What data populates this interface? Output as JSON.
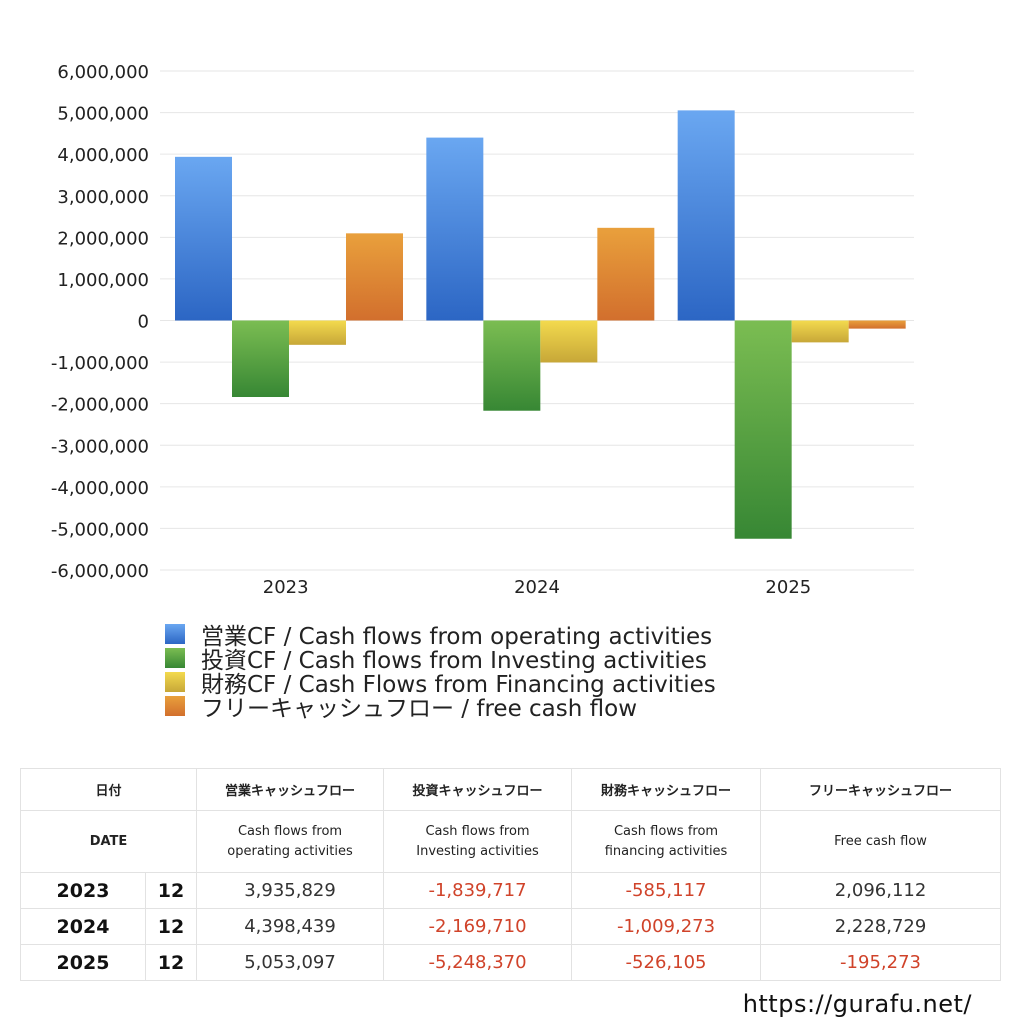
{
  "chart_data": {
    "type": "bar",
    "categories": [
      "2023",
      "2024",
      "2025"
    ],
    "ylim": [
      -6000000,
      6000000
    ],
    "yticks": [
      6000000,
      5000000,
      4000000,
      3000000,
      2000000,
      1000000,
      0,
      -1000000,
      -2000000,
      -3000000,
      -4000000,
      -5000000,
      -6000000
    ],
    "ytick_labels": [
      "6,000,000",
      "5,000,000",
      "4,000,000",
      "3,000,000",
      "2,000,000",
      "1,000,000",
      "0",
      "-1,000,000",
      "-2,000,000",
      "-3,000,000",
      "-4,000,000",
      "-5,000,000",
      "-6,000,000"
    ],
    "grid": true,
    "legend_position": "bottom",
    "series": [
      {
        "name": "営業CF / Cash flows from operating activities",
        "values": [
          3935829,
          4398439,
          5053097
        ],
        "color_top": "#6aa7f1",
        "color_bottom": "#2c66c4"
      },
      {
        "name": "投資CF / Cash flows from Investing activities",
        "values": [
          -1839717,
          -2169710,
          -5248370
        ],
        "color_top": "#7bbd52",
        "color_bottom": "#378734"
      },
      {
        "name": "財務CF / Cash Flows from Financing activities",
        "values": [
          -585117,
          -1009273,
          -526105
        ],
        "color_top": "#f3da4e",
        "color_bottom": "#c7a738"
      },
      {
        "name": "フリーキャッシュフロー / free cash flow",
        "values": [
          2096112,
          2228729,
          -195273
        ],
        "color_top": "#e9a03c",
        "color_bottom": "#d26f2d"
      }
    ]
  },
  "table": {
    "headers_jp": [
      "日付",
      "営業キャッシュフロー",
      "投資キャッシュフロー",
      "財務キャッシュフロー",
      "フリーキャッシュフロー"
    ],
    "headers_en": {
      "date": "DATE",
      "operating": [
        "Cash flows from",
        "operating activities"
      ],
      "investing": [
        "Cash flows from",
        "Investing activities"
      ],
      "financing": [
        "Cash flows from",
        "financing activities"
      ],
      "free": "Free cash flow"
    },
    "rows": [
      {
        "year": "2023",
        "month": "12",
        "operating": "3,935,829",
        "investing": "-1,839,717",
        "financing": "-585,117",
        "free": "2,096,112"
      },
      {
        "year": "2024",
        "month": "12",
        "operating": "4,398,439",
        "investing": "-2,169,710",
        "financing": "-1,009,273",
        "free": "2,228,729"
      },
      {
        "year": "2025",
        "month": "12",
        "operating": "5,053,097",
        "investing": "-5,248,370",
        "financing": "-526,105",
        "free": "-195,273"
      }
    ]
  },
  "footer": {
    "url": "https://gurafu.net/"
  }
}
